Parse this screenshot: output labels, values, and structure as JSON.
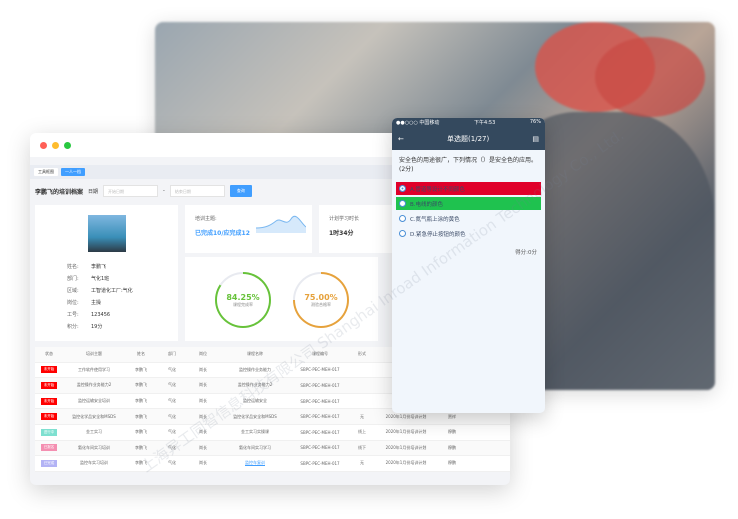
{
  "desktop": {
    "tabs": [
      "工具框图",
      "一人一档"
    ],
    "page_title": "李鹏飞的培训档案",
    "date_label": "日期",
    "start_placeholder": "开始日期",
    "end_placeholder": "结束日期",
    "search_label": "查询",
    "profile": {
      "fields": [
        {
          "k": "姓名:",
          "v": "李鹏飞"
        },
        {
          "k": "部门:",
          "v": "气化1班"
        },
        {
          "k": "区域:",
          "v": "工智道化工厂:气化"
        },
        {
          "k": "岗位:",
          "v": "主操"
        },
        {
          "k": "工号:",
          "v": "123456"
        },
        {
          "k": "积分:",
          "v": "19分"
        }
      ]
    },
    "training": {
      "label": "培训主题:",
      "value": "已完成10/应完成12"
    },
    "plan": {
      "label": "计划学习时长",
      "value": "1时34分"
    },
    "rings": [
      {
        "value": "84.25%",
        "label": "课程完成率",
        "percent": 84.25,
        "color": "#67c23a"
      },
      {
        "value": "75.00%",
        "label": "测验合格率",
        "percent": 75,
        "color": "#e6a23c"
      }
    ],
    "table": {
      "headers": [
        "状态",
        "培训主题",
        "姓名",
        "部门",
        "岗位",
        "课程名称",
        "课程编号",
        "形式",
        "培训计划",
        "讲师"
      ],
      "rows": [
        {
          "status": "未开始",
          "status_color": "#ff0000",
          "cells": [
            "工作软件使用学习",
            "李鹏飞",
            "气化",
            "岗长",
            "监控操作业务能力",
            "SBPC-PEC-MEH-017",
            "",
            "",
            ""
          ]
        },
        {
          "status": "未开始",
          "status_color": "#ff0000",
          "cells": [
            "监控操作业务能力2",
            "李鹏飞",
            "气化",
            "岗长",
            "监控操作业务能力2",
            "SBPC-PEC-MEH-017",
            "",
            "",
            ""
          ]
        },
        {
          "status": "未开始",
          "status_color": "#ff0000",
          "cells": [
            "监控运输安全培训",
            "李鹏飞",
            "气化",
            "岗长",
            "监控运输安全",
            "SBPC-PEC-MEH-017",
            "",
            "",
            ""
          ]
        },
        {
          "status": "未开始",
          "status_color": "#ff0000",
          "cells": [
            "监控化学品安全和MSDS",
            "李鹏飞",
            "气化",
            "岗长",
            "监控化学品安全和MSDS",
            "SBPC-PEC-MEH-017",
            "无",
            "2020年1月份培训计划",
            "贾祥"
          ]
        },
        {
          "status": "进行中",
          "status_color": "#7ee0d0",
          "cells": [
            "金工实习",
            "李鹏飞",
            "气化",
            "岗长",
            "金工实习实操课",
            "SBPC-PEC-MEH-017",
            "线上",
            "2020年1月份培训计划",
            "穆鹏"
          ]
        },
        {
          "status": "已报名",
          "status_color": "#f48fb1",
          "cells": [
            "氨化车间实习培训",
            "李鹏飞",
            "气化",
            "岗长",
            "氨化车间实习学习",
            "SBPC-PEC-MEH-017",
            "线下",
            "2020年1月份培训计划",
            "穆鹏"
          ]
        },
        {
          "status": "已完成",
          "status_color": "#b3b3f5",
          "cells": [
            "监控车实习培训",
            "李鹏飞",
            "气化",
            "岗长",
            "监控车复训",
            "SBPC-PEC-MEH-017",
            "无",
            "2020年1月份培训计划",
            "穆鹏"
          ]
        }
      ]
    }
  },
  "mobile": {
    "carrier": "●●○○○ 中国移动",
    "time": "下午4:53",
    "battery": "76%",
    "title": "单选题(1/27)",
    "question": "安全色的用途很广，下列情况（）是安全色的应用。(2分)",
    "options": [
      {
        "label": "A.管道等设计不同颜色",
        "state": "wrong",
        "selected": true
      },
      {
        "label": "B.电线的颜色",
        "state": "correct",
        "selected": false
      },
      {
        "label": "C.氮气瓶上涂的黄色",
        "state": "none",
        "selected": false
      },
      {
        "label": "D.紧急停止按钮的颜色",
        "state": "none",
        "selected": false
      }
    ],
    "score": "得分:0分"
  },
  "watermark": "上海异工同智信息科技有限公司 Shanghai Inroad Information Technology Co., Ltd."
}
